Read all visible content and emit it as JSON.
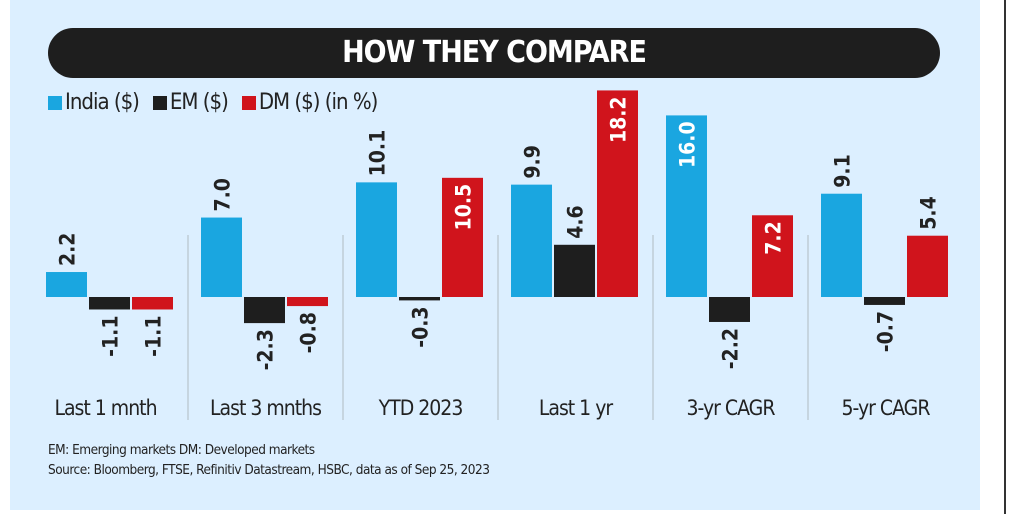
{
  "title": "HOW THEY COMPARE",
  "legend": {
    "unit_note": "(in %)"
  },
  "chart_data": {
    "type": "bar",
    "title": "HOW THEY COMPARE",
    "categories": [
      "Last 1 mnth",
      "Last 3 mnths",
      "YTD 2023",
      "Last 1 yr",
      "3-yr CAGR",
      "5-yr CAGR"
    ],
    "series": [
      {
        "name": "India ($)",
        "color": "#1aa6e0",
        "values": [
          2.2,
          7.0,
          10.1,
          9.9,
          16.0,
          9.1
        ]
      },
      {
        "name": "EM ($)",
        "color": "#1e1e1e",
        "values": [
          -1.1,
          -2.3,
          -0.3,
          4.6,
          -2.2,
          -0.7
        ]
      },
      {
        "name": "DM ($)",
        "color": "#d0141c",
        "values": [
          -1.1,
          -0.8,
          10.5,
          18.2,
          7.2,
          5.4
        ]
      }
    ],
    "value_labels": [
      [
        "2.2",
        "7.0",
        "10.1",
        "9.9",
        "16.0",
        "9.1"
      ],
      [
        "-1.1",
        "-2.3",
        "-0.3",
        "4.6",
        "-2.2",
        "-0.7"
      ],
      [
        "-1.1",
        "-0.8",
        "10.5",
        "18.2",
        "7.2",
        "5.4"
      ]
    ],
    "unit": "%",
    "legend_position": "top-left",
    "grid": false
  },
  "notes": {
    "abbrev": "EM: Emerging markets DM: Developed markets",
    "source": "Source: Bloomberg, FTSE, Refinitiv Datastream, HSBC, data as of Sep 25, 2023"
  }
}
